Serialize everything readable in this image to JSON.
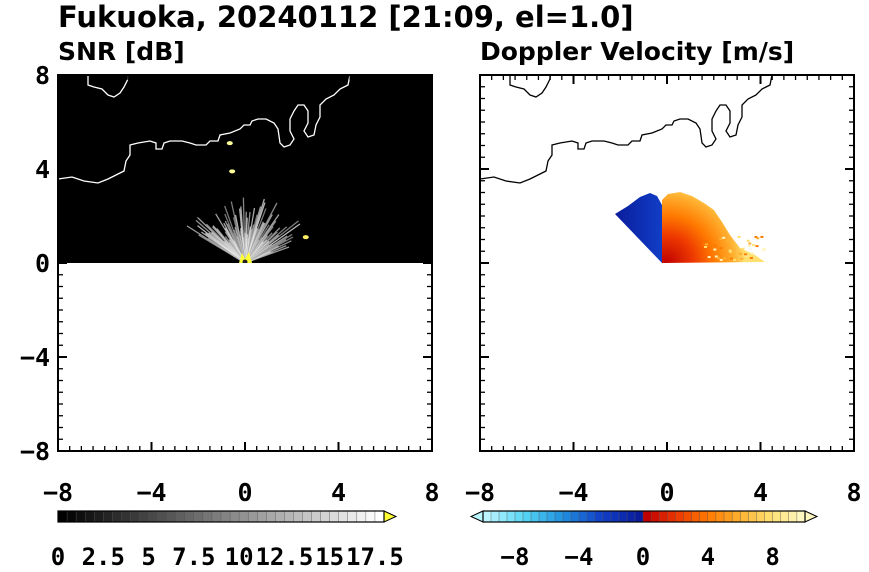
{
  "figure": {
    "title": "Fukuoka, 20240112 [21:09, el=1.0]"
  },
  "chart_data": [
    {
      "type": "heatmap",
      "title": "SNR [dB]",
      "xlim": [
        -8,
        8
      ],
      "ylim": [
        -8,
        8
      ],
      "x_ticks": [
        -8,
        -4,
        0,
        4,
        8
      ],
      "y_ticks": [
        -8,
        -4,
        0,
        4,
        8
      ],
      "x_tick_labels": [
        "−8",
        "−4",
        "0",
        "4",
        "8"
      ],
      "y_tick_labels": [
        "−8",
        "−4",
        "0",
        "4",
        "8"
      ],
      "background_color": "#000000",
      "colorbar": {
        "range": [
          0,
          18
        ],
        "step": 0.5,
        "extend": "max",
        "tick_labels": [
          "0",
          "2.5",
          "5",
          "7.5",
          "10",
          "12.5",
          "15",
          "17.5"
        ],
        "tick_values": [
          0,
          2.5,
          5,
          7.5,
          10,
          12.5,
          15,
          17.5
        ],
        "colors": [
          "#000000",
          "#ffffff"
        ],
        "extend_color": "#ffff33"
      },
      "radar_sector": {
        "start_deg": 20,
        "end_deg": 150,
        "range_max": 3
      },
      "features": [
        {
          "x": 2.6,
          "y": 1.1,
          "color": "#ffee66"
        },
        {
          "x": -0.55,
          "y": 3.9,
          "color": "#ffff99"
        },
        {
          "x": -0.65,
          "y": 5.1,
          "color": "#ffff99"
        }
      ]
    },
    {
      "type": "heatmap",
      "title": "Doppler Velocity [m/s]",
      "xlim": [
        -8,
        8
      ],
      "ylim": [
        -8,
        8
      ],
      "x_ticks": [
        -8,
        -4,
        0,
        4,
        8
      ],
      "y_ticks": [
        -8,
        -4,
        0,
        4,
        8
      ],
      "x_tick_labels": [
        "−8",
        "−4",
        "0",
        "4",
        "8"
      ],
      "y_tick_labels": [
        "−8",
        "−4",
        "0",
        "4",
        "8"
      ],
      "background_color": "#ffffff",
      "colorbar": {
        "range": [
          -10,
          10
        ],
        "extend": "both",
        "tick_values": [
          -8,
          -4,
          0,
          4,
          8
        ],
        "tick_labels": [
          "−8",
          "−4",
          "0",
          "4",
          "8"
        ],
        "negative_colors": [
          "#bbf5ff",
          "#55d5f5",
          "#1f8fe0",
          "#1140c8",
          "#0a1c9c"
        ],
        "positive_colors": [
          "#c00000",
          "#ee3a00",
          "#ff7a00",
          "#ffb030",
          "#ffe070",
          "#fff6c0"
        ]
      },
      "radar_sector": {
        "start_deg": 20,
        "end_deg": 140,
        "range_max": 3.2
      }
    }
  ]
}
